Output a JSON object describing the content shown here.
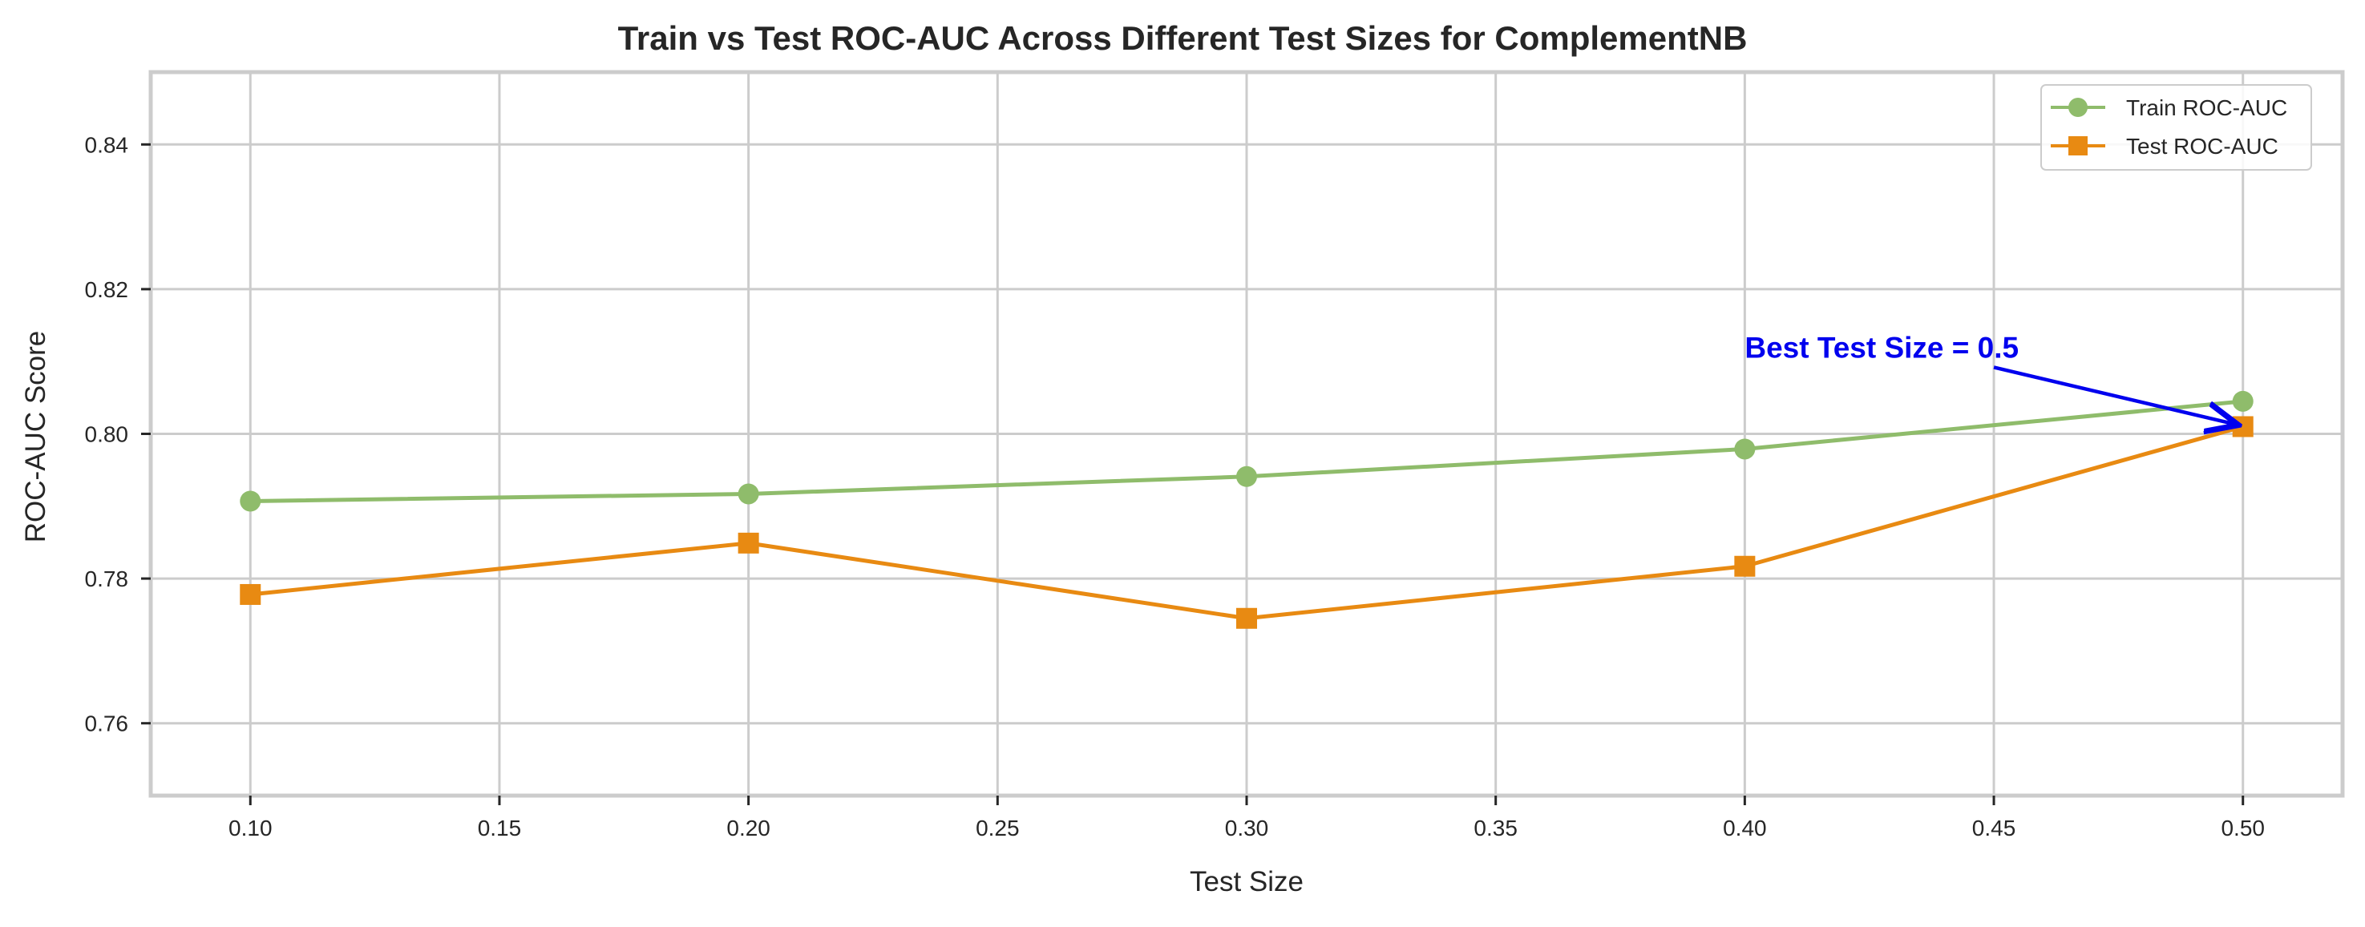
{
  "chart_data": {
    "type": "line",
    "title": "Train vs Test ROC-AUC Across Different Test Sizes for ComplementNB",
    "xlabel": "Test Size",
    "ylabel": "ROC-AUC Score",
    "xlim": [
      0.08,
      0.52
    ],
    "ylim": [
      0.75,
      0.85
    ],
    "xticks": [
      0.1,
      0.15,
      0.2,
      0.25,
      0.3,
      0.35,
      0.4,
      0.45,
      0.5
    ],
    "xtick_labels": [
      "0.10",
      "0.15",
      "0.20",
      "0.25",
      "0.30",
      "0.35",
      "0.40",
      "0.45",
      "0.50"
    ],
    "yticks": [
      0.76,
      0.78,
      0.8,
      0.82,
      0.84
    ],
    "ytick_labels": [
      "0.76",
      "0.78",
      "0.80",
      "0.82",
      "0.84"
    ],
    "grid": true,
    "legend_position": "top-right",
    "x": [
      0.1,
      0.2,
      0.3,
      0.4,
      0.5
    ],
    "series": [
      {
        "name": "Train ROC-AUC",
        "marker": "circle",
        "color": "#8fbc6b",
        "values": [
          0.7907,
          0.7917,
          0.7941,
          0.7979,
          0.8045
        ]
      },
      {
        "name": "Test ROC-AUC",
        "marker": "square",
        "color": "#e88a12",
        "values": [
          0.7778,
          0.7849,
          0.7745,
          0.7817,
          0.801
        ]
      }
    ],
    "annotation": {
      "text": "Best Test Size = 0.5",
      "color": "#0000ee",
      "text_x": 0.4,
      "text_y": 0.8105,
      "arrow_from_x": 0.45,
      "arrow_from_y": 0.8092,
      "target_x": 0.5,
      "target_y": 0.801
    }
  }
}
